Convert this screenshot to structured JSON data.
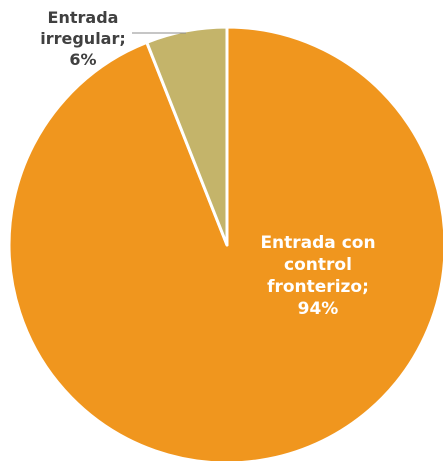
{
  "chart_data": {
    "type": "pie",
    "categories": [
      "Entrada con control fronterizo;",
      "Entrada irregular;"
    ],
    "values": [
      94,
      6
    ],
    "value_labels": [
      "94%",
      "6%"
    ],
    "colors": [
      "#F0961E",
      "#C4B46A"
    ]
  }
}
